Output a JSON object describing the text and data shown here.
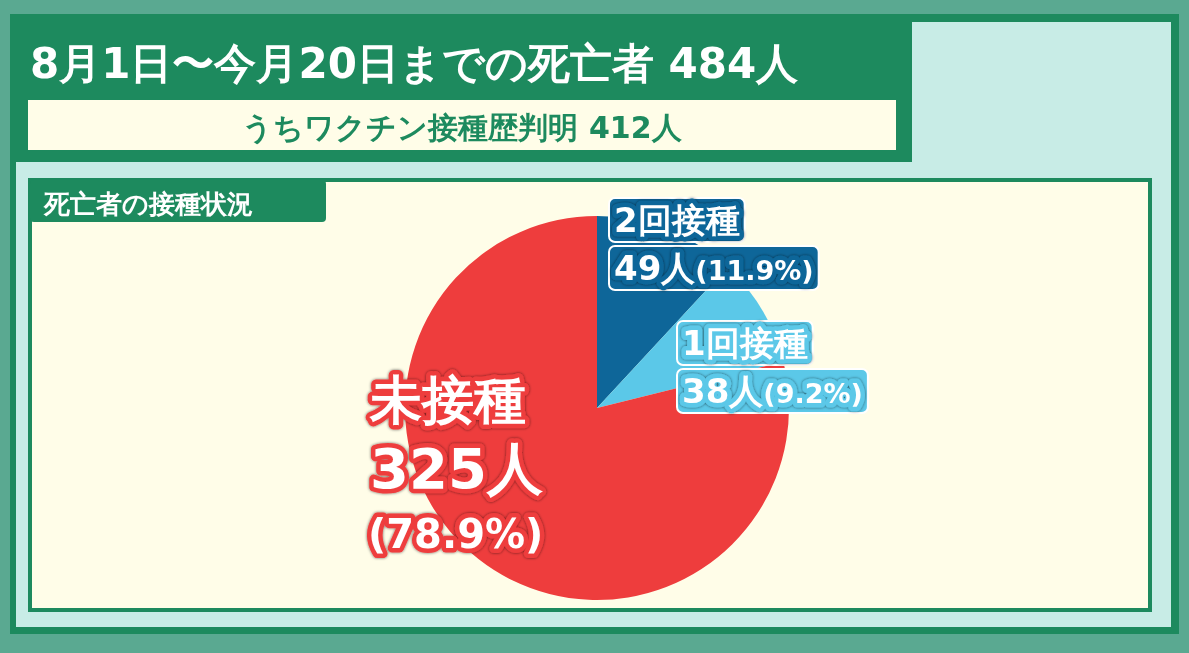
{
  "chart_data": {
    "type": "pie",
    "title": "8月1日〜今月20日までの死亡者 484人",
    "subtitle": "うちワクチン接種歴判明 412人",
    "annotations": [
      "死亡者の接種状況"
    ],
    "categories": [
      "2回接種",
      "1回接種",
      "未接種"
    ],
    "values": [
      49,
      38,
      325
    ],
    "colors": [
      "#0e6699",
      "#5bc8e8",
      "#ee3d3d"
    ],
    "value_labels": [
      "49人(11.9%)",
      "38人(9.2%)",
      "325人(78.9%)"
    ]
  }
}
